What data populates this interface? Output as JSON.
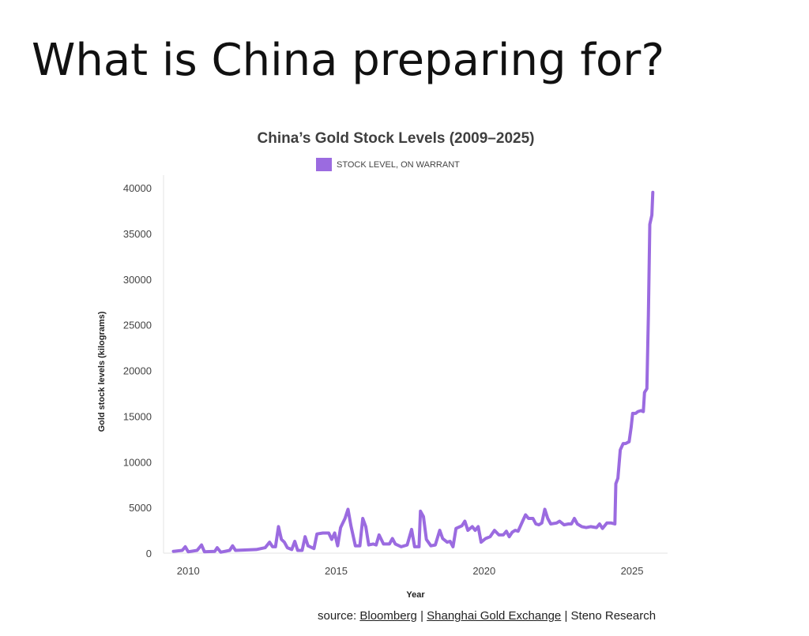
{
  "slide": {
    "title": "What is China preparing for?"
  },
  "source": {
    "prefix": "source: ",
    "sources": [
      "Bloomberg",
      "Shanghai Gold Exchange",
      "Steno Research"
    ],
    "separator": " | "
  },
  "colors": {
    "series": "#9b6be0",
    "axis": "#cccccc",
    "text": "#444444"
  },
  "chart_data": {
    "type": "line",
    "title": "China’s Gold Stock Levels (2009–2025)",
    "xlabel": "Year",
    "ylabel": "Gold stock levels (kilograms)",
    "xlim": [
      2009.3,
      2026.2
    ],
    "ylim": [
      0,
      40000
    ],
    "x_ticks": [
      2010,
      2015,
      2020,
      2025
    ],
    "y_ticks": [
      0,
      5000,
      10000,
      15000,
      20000,
      25000,
      30000,
      35000,
      40000
    ],
    "grid": false,
    "legend": "top-center",
    "series": [
      {
        "name": "STOCK LEVEL, ON WARRANT",
        "color": "#9b6be0",
        "points": [
          [
            2009.5,
            200
          ],
          [
            2009.8,
            300
          ],
          [
            2009.9,
            700
          ],
          [
            2010.0,
            150
          ],
          [
            2010.3,
            300
          ],
          [
            2010.45,
            900
          ],
          [
            2010.55,
            150
          ],
          [
            2010.9,
            200
          ],
          [
            2010.98,
            600
          ],
          [
            2011.1,
            100
          ],
          [
            2011.4,
            300
          ],
          [
            2011.5,
            800
          ],
          [
            2011.6,
            300
          ],
          [
            2012.0,
            350
          ],
          [
            2012.3,
            400
          ],
          [
            2012.6,
            600
          ],
          [
            2012.75,
            1200
          ],
          [
            2012.85,
            700
          ],
          [
            2012.95,
            700
          ],
          [
            2013.05,
            2900
          ],
          [
            2013.15,
            1500
          ],
          [
            2013.25,
            1200
          ],
          [
            2013.35,
            600
          ],
          [
            2013.5,
            400
          ],
          [
            2013.6,
            1300
          ],
          [
            2013.7,
            300
          ],
          [
            2013.85,
            300
          ],
          [
            2013.95,
            1800
          ],
          [
            2014.05,
            800
          ],
          [
            2014.25,
            500
          ],
          [
            2014.35,
            2100
          ],
          [
            2014.55,
            2200
          ],
          [
            2014.75,
            2200
          ],
          [
            2014.85,
            1500
          ],
          [
            2014.95,
            2200
          ],
          [
            2015.05,
            800
          ],
          [
            2015.15,
            2800
          ],
          [
            2015.3,
            3800
          ],
          [
            2015.4,
            4800
          ],
          [
            2015.5,
            3000
          ],
          [
            2015.65,
            800
          ],
          [
            2015.8,
            800
          ],
          [
            2015.9,
            3800
          ],
          [
            2016.0,
            2900
          ],
          [
            2016.1,
            900
          ],
          [
            2016.25,
            1000
          ],
          [
            2016.35,
            900
          ],
          [
            2016.45,
            2000
          ],
          [
            2016.6,
            1000
          ],
          [
            2016.8,
            1000
          ],
          [
            2016.9,
            1600
          ],
          [
            2017.0,
            1000
          ],
          [
            2017.2,
            700
          ],
          [
            2017.4,
            900
          ],
          [
            2017.55,
            2600
          ],
          [
            2017.65,
            700
          ],
          [
            2017.8,
            700
          ],
          [
            2017.85,
            4600
          ],
          [
            2017.95,
            4000
          ],
          [
            2018.05,
            1500
          ],
          [
            2018.2,
            800
          ],
          [
            2018.35,
            900
          ],
          [
            2018.5,
            2500
          ],
          [
            2018.6,
            1600
          ],
          [
            2018.75,
            1200
          ],
          [
            2018.85,
            1300
          ],
          [
            2018.95,
            700
          ],
          [
            2019.05,
            2700
          ],
          [
            2019.25,
            3000
          ],
          [
            2019.35,
            3500
          ],
          [
            2019.45,
            2500
          ],
          [
            2019.6,
            2900
          ],
          [
            2019.7,
            2500
          ],
          [
            2019.8,
            2900
          ],
          [
            2019.9,
            1200
          ],
          [
            2020.05,
            1600
          ],
          [
            2020.2,
            1800
          ],
          [
            2020.35,
            2500
          ],
          [
            2020.5,
            2000
          ],
          [
            2020.65,
            2000
          ],
          [
            2020.75,
            2400
          ],
          [
            2020.85,
            1800
          ],
          [
            2020.95,
            2300
          ],
          [
            2021.05,
            2500
          ],
          [
            2021.15,
            2400
          ],
          [
            2021.3,
            3500
          ],
          [
            2021.4,
            4200
          ],
          [
            2021.5,
            3800
          ],
          [
            2021.65,
            3800
          ],
          [
            2021.75,
            3200
          ],
          [
            2021.85,
            3100
          ],
          [
            2021.95,
            3300
          ],
          [
            2022.05,
            4800
          ],
          [
            2022.15,
            3800
          ],
          [
            2022.25,
            3200
          ],
          [
            2022.45,
            3300
          ],
          [
            2022.55,
            3500
          ],
          [
            2022.7,
            3100
          ],
          [
            2022.85,
            3200
          ],
          [
            2022.95,
            3200
          ],
          [
            2023.05,
            3800
          ],
          [
            2023.15,
            3200
          ],
          [
            2023.3,
            2900
          ],
          [
            2023.45,
            2800
          ],
          [
            2023.6,
            2900
          ],
          [
            2023.8,
            2800
          ],
          [
            2023.9,
            3200
          ],
          [
            2024.0,
            2700
          ],
          [
            2024.15,
            3300
          ],
          [
            2024.3,
            3300
          ],
          [
            2024.42,
            3200
          ],
          [
            2024.45,
            7600
          ],
          [
            2024.52,
            8200
          ],
          [
            2024.6,
            11300
          ],
          [
            2024.7,
            12000
          ],
          [
            2024.78,
            12000
          ],
          [
            2024.9,
            12200
          ],
          [
            2024.97,
            13800
          ],
          [
            2025.02,
            15300
          ],
          [
            2025.12,
            15300
          ],
          [
            2025.2,
            15500
          ],
          [
            2025.3,
            15600
          ],
          [
            2025.38,
            15500
          ],
          [
            2025.42,
            17600
          ],
          [
            2025.5,
            18000
          ],
          [
            2025.55,
            26000
          ],
          [
            2025.6,
            36000
          ],
          [
            2025.67,
            37000
          ],
          [
            2025.7,
            39500
          ]
        ]
      }
    ]
  }
}
